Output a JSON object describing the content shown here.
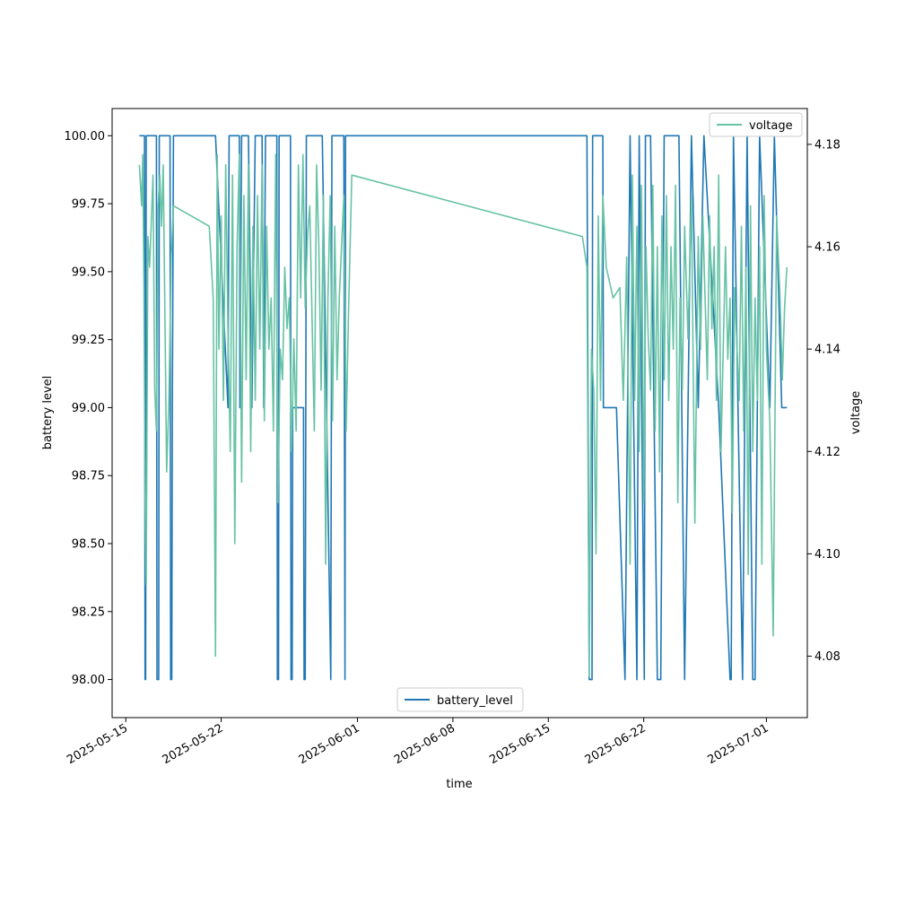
{
  "chart_data": {
    "type": "line",
    "title": "",
    "xlabel": "time",
    "ylabel": "battery level",
    "y2label": "voltage",
    "xlim": [
      "2025-05-14",
      "2025-07-04"
    ],
    "ylim": [
      97.86,
      100.1
    ],
    "y2lim": [
      4.068,
      4.187
    ],
    "x_ticks": [
      "2025-05-15",
      "2025-05-22",
      "2025-06-01",
      "2025-06-08",
      "2025-06-15",
      "2025-06-22",
      "2025-07-01"
    ],
    "y_ticks": [
      "98.00",
      "98.25",
      "98.50",
      "98.75",
      "99.00",
      "99.25",
      "99.50",
      "99.75",
      "100.00"
    ],
    "y2_ticks": [
      "4.08",
      "4.10",
      "4.12",
      "4.14",
      "4.16",
      "4.18"
    ],
    "grid": false,
    "legends": [
      {
        "series": "battery_level",
        "placement": "bottom-center"
      },
      {
        "series": "voltage",
        "placement": "top-right"
      }
    ],
    "series": [
      {
        "name": "battery_level",
        "axis": "left",
        "color": "#1f77b4",
        "step": true,
        "points": [
          [
            "2025-05-16T00:00",
            100
          ],
          [
            "2025-05-16T09:00",
            100
          ],
          [
            "2025-05-16T10:00",
            98
          ],
          [
            "2025-05-16T11:00",
            98
          ],
          [
            "2025-05-16T12:00",
            100
          ],
          [
            "2025-05-17T06:00",
            100
          ],
          [
            "2025-05-17T07:00",
            98
          ],
          [
            "2025-05-17T10:00",
            98
          ],
          [
            "2025-05-17T11:00",
            100
          ],
          [
            "2025-05-18T06:00",
            100
          ],
          [
            "2025-05-18T07:00",
            98
          ],
          [
            "2025-05-18T09:00",
            98
          ],
          [
            "2025-05-18T10:00",
            99
          ],
          [
            "2025-05-18T12:00",
            100
          ],
          [
            "2025-05-21T10:00",
            100
          ],
          [
            "2025-05-21T14:00",
            100
          ],
          [
            "2025-05-22T12:00",
            99
          ],
          [
            "2025-05-22T14:00",
            100
          ],
          [
            "2025-05-23T08:00",
            100
          ],
          [
            "2025-05-23T09:00",
            99
          ],
          [
            "2025-05-23T12:00",
            100
          ],
          [
            "2025-05-24T00:00",
            100
          ],
          [
            "2025-05-24T06:00",
            99
          ],
          [
            "2025-05-24T12:00",
            100
          ],
          [
            "2025-05-25T00:00",
            100
          ],
          [
            "2025-05-25T03:00",
            99
          ],
          [
            "2025-05-25T06:00",
            100
          ],
          [
            "2025-05-26T02:00",
            100
          ],
          [
            "2025-05-26T03:00",
            98
          ],
          [
            "2025-05-26T05:00",
            98
          ],
          [
            "2025-05-26T06:00",
            100
          ],
          [
            "2025-05-27T02:00",
            100
          ],
          [
            "2025-05-27T03:00",
            98
          ],
          [
            "2025-05-27T05:00",
            98
          ],
          [
            "2025-05-27T06:00",
            99
          ],
          [
            "2025-05-28T01:00",
            99
          ],
          [
            "2025-05-28T02:00",
            98
          ],
          [
            "2025-05-28T04:00",
            98
          ],
          [
            "2025-05-28T06:00",
            100
          ],
          [
            "2025-05-29T10:00",
            100
          ],
          [
            "2025-05-30T01:00",
            98
          ],
          [
            "2025-05-30T03:00",
            100
          ],
          [
            "2025-05-31T00:00",
            100
          ],
          [
            "2025-05-31T02:00",
            98
          ],
          [
            "2025-05-31T03:00",
            100
          ],
          [
            "2025-06-17T20:00",
            100
          ],
          [
            "2025-06-18T00:00",
            98
          ],
          [
            "2025-06-18T05:00",
            98
          ],
          [
            "2025-06-18T06:00",
            100
          ],
          [
            "2025-06-19T00:00",
            100
          ],
          [
            "2025-06-19T01:00",
            99
          ],
          [
            "2025-06-20T00:00",
            99
          ],
          [
            "2025-06-20T15:00",
            98
          ],
          [
            "2025-06-21T00:00",
            100
          ],
          [
            "2025-06-21T12:00",
            98
          ],
          [
            "2025-06-21T16:00",
            100
          ],
          [
            "2025-06-22T01:00",
            98
          ],
          [
            "2025-06-22T03:00",
            100
          ],
          [
            "2025-06-22T12:00",
            100
          ],
          [
            "2025-06-23T00:00",
            98
          ],
          [
            "2025-06-23T06:00",
            98
          ],
          [
            "2025-06-23T12:00",
            100
          ],
          [
            "2025-06-24T14:00",
            100
          ],
          [
            "2025-06-25T00:00",
            98
          ],
          [
            "2025-06-25T12:00",
            100
          ],
          [
            "2025-06-26T00:00",
            99
          ],
          [
            "2025-06-26T10:00",
            100
          ],
          [
            "2025-06-27T12:00",
            99
          ],
          [
            "2025-06-28T08:00",
            98
          ],
          [
            "2025-06-28T10:00",
            98
          ],
          [
            "2025-06-28T14:00",
            100
          ],
          [
            "2025-06-29T06:00",
            98
          ],
          [
            "2025-06-29T14:00",
            100
          ],
          [
            "2025-06-30T00:00",
            98
          ],
          [
            "2025-06-30T04:00",
            98
          ],
          [
            "2025-06-30T12:00",
            100
          ],
          [
            "2025-07-01T06:00",
            99
          ],
          [
            "2025-07-01T14:00",
            100
          ],
          [
            "2025-07-02T03:00",
            99
          ],
          [
            "2025-07-02T12:00",
            99
          ]
        ]
      },
      {
        "name": "voltage",
        "axis": "right",
        "color": "#66c2a5",
        "step": false,
        "points": [
          [
            "2025-05-16T00:00",
            4.176
          ],
          [
            "2025-05-16T04:00",
            4.168
          ],
          [
            "2025-05-16T06:00",
            4.178
          ],
          [
            "2025-05-16T08:00",
            4.152
          ],
          [
            "2025-05-16T10:00",
            4.112
          ],
          [
            "2025-05-16T12:00",
            4.094
          ],
          [
            "2025-05-16T15:00",
            4.162
          ],
          [
            "2025-05-16T18:00",
            4.156
          ],
          [
            "2025-05-17T00:00",
            4.174
          ],
          [
            "2025-05-17T03:00",
            4.132
          ],
          [
            "2025-05-17T06:00",
            4.124
          ],
          [
            "2025-05-17T09:00",
            4.168
          ],
          [
            "2025-05-17T12:00",
            4.174
          ],
          [
            "2025-05-17T15:00",
            4.164
          ],
          [
            "2025-05-17T18:00",
            4.176
          ],
          [
            "2025-05-18T00:00",
            4.116
          ],
          [
            "2025-05-18T04:00",
            4.13
          ],
          [
            "2025-05-18T08:00",
            4.158
          ],
          [
            "2025-05-18T12:00",
            4.168
          ],
          [
            "2025-05-21T03:00",
            4.164
          ],
          [
            "2025-05-21T10:00",
            4.15
          ],
          [
            "2025-05-21T14:00",
            4.08
          ],
          [
            "2025-05-21T17:00",
            4.178
          ],
          [
            "2025-05-21T20:00",
            4.14
          ],
          [
            "2025-05-22T00:00",
            4.166
          ],
          [
            "2025-05-22T04:00",
            4.13
          ],
          [
            "2025-05-22T08:00",
            4.176
          ],
          [
            "2025-05-22T12:00",
            4.144
          ],
          [
            "2025-05-22T16:00",
            4.12
          ],
          [
            "2025-05-22T20:00",
            4.174
          ],
          [
            "2025-05-23T00:00",
            4.102
          ],
          [
            "2025-05-23T04:00",
            4.16
          ],
          [
            "2025-05-23T08:00",
            4.178
          ],
          [
            "2025-05-23T12:00",
            4.114
          ],
          [
            "2025-05-23T16:00",
            4.17
          ],
          [
            "2025-05-23T20:00",
            4.134
          ],
          [
            "2025-05-24T00:00",
            4.176
          ],
          [
            "2025-05-24T04:00",
            4.12
          ],
          [
            "2025-05-24T08:00",
            4.164
          ],
          [
            "2025-05-24T12:00",
            4.13
          ],
          [
            "2025-05-24T16:00",
            4.17
          ],
          [
            "2025-05-24T20:00",
            4.14
          ],
          [
            "2025-05-25T00:00",
            4.176
          ],
          [
            "2025-05-25T04:00",
            4.126
          ],
          [
            "2025-05-25T08:00",
            4.164
          ],
          [
            "2025-05-25T12:00",
            4.14
          ],
          [
            "2025-05-25T16:00",
            4.15
          ],
          [
            "2025-05-25T20:00",
            4.124
          ],
          [
            "2025-05-26T00:00",
            4.178
          ],
          [
            "2025-05-26T04:00",
            4.11
          ],
          [
            "2025-05-26T08:00",
            4.14
          ],
          [
            "2025-05-26T12:00",
            4.134
          ],
          [
            "2025-05-26T16:00",
            4.156
          ],
          [
            "2025-05-26T20:00",
            4.144
          ],
          [
            "2025-05-27T00:00",
            4.15
          ],
          [
            "2025-05-27T04:00",
            4.12
          ],
          [
            "2025-05-27T08:00",
            4.142
          ],
          [
            "2025-05-27T12:00",
            4.124
          ],
          [
            "2025-05-27T16:00",
            4.176
          ],
          [
            "2025-05-27T20:00",
            4.15
          ],
          [
            "2025-05-28T00:00",
            4.178
          ],
          [
            "2025-05-28T04:00",
            4.148
          ],
          [
            "2025-05-28T08:00",
            4.162
          ],
          [
            "2025-05-28T12:00",
            4.168
          ],
          [
            "2025-05-28T16:00",
            4.146
          ],
          [
            "2025-05-28T20:00",
            4.124
          ],
          [
            "2025-05-29T00:00",
            4.176
          ],
          [
            "2025-05-29T04:00",
            4.16
          ],
          [
            "2025-05-29T08:00",
            4.132
          ],
          [
            "2025-05-29T12:00",
            4.17
          ],
          [
            "2025-05-29T16:00",
            4.098
          ],
          [
            "2025-05-29T20:00",
            4.15
          ],
          [
            "2025-05-30T00:00",
            4.17
          ],
          [
            "2025-05-30T04:00",
            4.126
          ],
          [
            "2025-05-30T08:00",
            4.164
          ],
          [
            "2025-05-30T12:00",
            4.134
          ],
          [
            "2025-05-30T16:00",
            4.15
          ],
          [
            "2025-05-31T00:00",
            4.17
          ],
          [
            "2025-05-31T04:00",
            4.124
          ],
          [
            "2025-05-31T08:00",
            4.146
          ],
          [
            "2025-05-31T14:00",
            4.174
          ],
          [
            "2025-06-17T12:00",
            4.162
          ],
          [
            "2025-06-17T20:00",
            4.156
          ],
          [
            "2025-06-18T00:00",
            4.076
          ],
          [
            "2025-06-18T04:00",
            4.14
          ],
          [
            "2025-06-18T08:00",
            4.132
          ],
          [
            "2025-06-18T12:00",
            4.1
          ],
          [
            "2025-06-18T16:00",
            4.166
          ],
          [
            "2025-06-18T20:00",
            4.13
          ],
          [
            "2025-06-19T00:00",
            4.17
          ],
          [
            "2025-06-19T06:00",
            4.156
          ],
          [
            "2025-06-19T18:00",
            4.15
          ],
          [
            "2025-06-20T06:00",
            4.152
          ],
          [
            "2025-06-20T12:00",
            4.13
          ],
          [
            "2025-06-20T18:00",
            4.158
          ],
          [
            "2025-06-21T00:00",
            4.098
          ],
          [
            "2025-06-21T04:00",
            4.174
          ],
          [
            "2025-06-21T08:00",
            4.13
          ],
          [
            "2025-06-21T12:00",
            4.164
          ],
          [
            "2025-06-21T16:00",
            4.12
          ],
          [
            "2025-06-21T20:00",
            4.172
          ],
          [
            "2025-06-22T00:00",
            4.11
          ],
          [
            "2025-06-22T04:00",
            4.16
          ],
          [
            "2025-06-22T08:00",
            4.142
          ],
          [
            "2025-06-22T12:00",
            4.132
          ],
          [
            "2025-06-22T16:00",
            4.172
          ],
          [
            "2025-06-22T20:00",
            4.124
          ],
          [
            "2025-06-23T00:00",
            4.16
          ],
          [
            "2025-06-23T04:00",
            4.116
          ],
          [
            "2025-06-23T08:00",
            4.166
          ],
          [
            "2025-06-23T12:00",
            4.134
          ],
          [
            "2025-06-23T16:00",
            4.17
          ],
          [
            "2025-06-23T20:00",
            4.13
          ],
          [
            "2025-06-24T00:00",
            4.16
          ],
          [
            "2025-06-24T04:00",
            4.14
          ],
          [
            "2025-06-24T08:00",
            4.172
          ],
          [
            "2025-06-24T12:00",
            4.11
          ],
          [
            "2025-06-24T16:00",
            4.15
          ],
          [
            "2025-06-24T20:00",
            4.132
          ],
          [
            "2025-06-25T00:00",
            4.164
          ],
          [
            "2025-06-25T06:00",
            4.142
          ],
          [
            "2025-06-25T12:00",
            4.17
          ],
          [
            "2025-06-25T18:00",
            4.106
          ],
          [
            "2025-06-26T00:00",
            4.162
          ],
          [
            "2025-06-26T04:00",
            4.14
          ],
          [
            "2025-06-26T08:00",
            4.166
          ],
          [
            "2025-06-26T12:00",
            4.15
          ],
          [
            "2025-06-26T16:00",
            4.134
          ],
          [
            "2025-06-26T20:00",
            4.166
          ],
          [
            "2025-06-27T00:00",
            4.144
          ],
          [
            "2025-06-27T04:00",
            4.16
          ],
          [
            "2025-06-27T08:00",
            4.13
          ],
          [
            "2025-06-27T12:00",
            4.174
          ],
          [
            "2025-06-27T16:00",
            4.12
          ],
          [
            "2025-06-28T00:00",
            4.16
          ],
          [
            "2025-06-28T04:00",
            4.138
          ],
          [
            "2025-06-28T08:00",
            4.15
          ],
          [
            "2025-06-28T12:00",
            4.108
          ],
          [
            "2025-06-28T16:00",
            4.152
          ],
          [
            "2025-06-29T00:00",
            4.13
          ],
          [
            "2025-06-29T04:00",
            4.164
          ],
          [
            "2025-06-29T08:00",
            4.124
          ],
          [
            "2025-06-29T12:00",
            4.156
          ],
          [
            "2025-06-29T16:00",
            4.096
          ],
          [
            "2025-06-29T20:00",
            4.168
          ],
          [
            "2025-06-30T00:00",
            4.12
          ],
          [
            "2025-06-30T04:00",
            4.15
          ],
          [
            "2025-06-30T08:00",
            4.13
          ],
          [
            "2025-06-30T12:00",
            4.16
          ],
          [
            "2025-06-30T16:00",
            4.098
          ],
          [
            "2025-06-30T20:00",
            4.17
          ],
          [
            "2025-07-01T00:00",
            4.14
          ],
          [
            "2025-07-01T06:00",
            4.126
          ],
          [
            "2025-07-01T12:00",
            4.084
          ],
          [
            "2025-07-01T18:00",
            4.166
          ],
          [
            "2025-07-02T00:00",
            4.15
          ],
          [
            "2025-07-02T04:00",
            4.134
          ],
          [
            "2025-07-02T08:00",
            4.148
          ],
          [
            "2025-07-02T12:00",
            4.156
          ]
        ]
      }
    ]
  }
}
